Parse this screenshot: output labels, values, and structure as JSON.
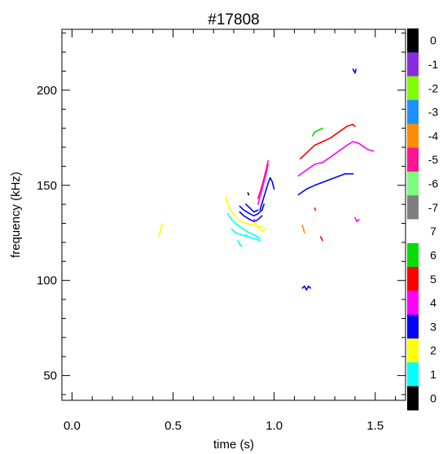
{
  "chart_data": {
    "type": "scatter",
    "title": "#17808",
    "xlabel": "time (s)",
    "ylabel": "frequency (kHz)",
    "xlim": [
      -0.05,
      1.65
    ],
    "ylim": [
      37,
      232
    ],
    "xticks": [
      0.0,
      0.5,
      1.0,
      1.5
    ],
    "xtick_labels": [
      "0.0",
      "0.5",
      "1.0",
      "1.5"
    ],
    "yticks": [
      50,
      100,
      150,
      200
    ],
    "ytick_labels": [
      "50",
      "100",
      "150",
      "200"
    ],
    "x_minor_step": 0.1,
    "y_minor_step": 10,
    "grid": false,
    "legend": "colorbar right",
    "colorbar": [
      {
        "label": "0",
        "color": "#000000"
      },
      {
        "label": "-1",
        "color": "#8a2be2"
      },
      {
        "label": "-2",
        "color": "#7fff00"
      },
      {
        "label": "-3",
        "color": "#1e90ff"
      },
      {
        "label": "-4",
        "color": "#ff8c00"
      },
      {
        "label": "-5",
        "color": "#ff1493"
      },
      {
        "label": "-6",
        "color": "#7cfc7c"
      },
      {
        "label": "-7",
        "color": "#808080"
      },
      {
        "label": "7",
        "color": "#ffffff"
      },
      {
        "label": "6",
        "color": "#00dd00"
      },
      {
        "label": "5",
        "color": "#ff0000"
      },
      {
        "label": "4",
        "color": "#ff00ff"
      },
      {
        "label": "3",
        "color": "#0000ff"
      },
      {
        "label": "2",
        "color": "#ffff00"
      },
      {
        "label": "1",
        "color": "#00ffff"
      },
      {
        "label": "0",
        "color": "#000000"
      }
    ],
    "series": [
      {
        "mode": 2,
        "color": "#ffff00",
        "points": [
          [
            0.43,
            123
          ],
          [
            0.435,
            125
          ],
          [
            0.44,
            127
          ],
          [
            0.445,
            129
          ],
          [
            0.45,
            130
          ]
        ]
      },
      {
        "mode": 2,
        "color": "#ffff00",
        "points": [
          [
            0.76,
            144
          ],
          [
            0.77,
            140
          ],
          [
            0.79,
            136
          ],
          [
            0.82,
            132
          ],
          [
            0.86,
            130
          ],
          [
            0.9,
            129
          ],
          [
            0.94,
            128
          ]
        ]
      },
      {
        "mode": 2,
        "color": "#ffff00",
        "points": [
          [
            0.9,
            131
          ],
          [
            0.92,
            128
          ],
          [
            0.94,
            126
          ],
          [
            0.96,
            127
          ]
        ]
      },
      {
        "mode": 1,
        "color": "#00ffff",
        "points": [
          [
            0.77,
            135
          ],
          [
            0.79,
            132
          ],
          [
            0.82,
            129
          ],
          [
            0.86,
            126
          ],
          [
            0.9,
            124
          ],
          [
            0.93,
            122
          ]
        ]
      },
      {
        "mode": 1,
        "color": "#00ffff",
        "points": [
          [
            0.79,
            127
          ],
          [
            0.81,
            125
          ],
          [
            0.84,
            124
          ],
          [
            0.87,
            123
          ],
          [
            0.9,
            122
          ],
          [
            0.93,
            121
          ]
        ]
      },
      {
        "mode": 1,
        "color": "#00ffff",
        "points": [
          [
            0.82,
            121
          ],
          [
            0.83,
            119
          ],
          [
            0.84,
            118
          ]
        ]
      },
      {
        "mode": 1,
        "color": "#00ffff",
        "points": [
          [
            0.86,
            124
          ],
          [
            0.87,
            123
          ]
        ]
      },
      {
        "mode": 3,
        "color": "#0000ff",
        "points": [
          [
            0.83,
            139
          ],
          [
            0.85,
            137
          ],
          [
            0.88,
            135
          ],
          [
            0.9,
            134
          ],
          [
            0.92,
            135
          ],
          [
            0.94,
            137
          ],
          [
            0.95,
            140
          ]
        ]
      },
      {
        "mode": 3,
        "color": "#0000ff",
        "points": [
          [
            0.83,
            136
          ],
          [
            0.85,
            134
          ],
          [
            0.88,
            132
          ],
          [
            0.9,
            131
          ],
          [
            0.92,
            132
          ],
          [
            0.94,
            134
          ]
        ]
      },
      {
        "mode": 3,
        "color": "#0000ff",
        "points": [
          [
            0.86,
            140
          ],
          [
            0.88,
            138
          ],
          [
            0.9,
            136
          ],
          [
            0.92,
            137
          ]
        ]
      },
      {
        "mode": 3,
        "color": "#0000ff",
        "points": [
          [
            0.93,
            137
          ],
          [
            0.95,
            144
          ],
          [
            0.97,
            151
          ],
          [
            0.98,
            154
          ],
          [
            0.99,
            152
          ],
          [
            1.0,
            148
          ]
        ]
      },
      {
        "mode": 3,
        "color": "#0000ff",
        "points": [
          [
            1.12,
            145
          ],
          [
            1.16,
            148
          ],
          [
            1.2,
            150
          ],
          [
            1.25,
            152
          ],
          [
            1.3,
            154
          ],
          [
            1.35,
            156
          ],
          [
            1.39,
            156
          ]
        ]
      },
      {
        "mode": 3,
        "color": "#0000ff",
        "points": [
          [
            1.39,
            211
          ],
          [
            1.4,
            209
          ],
          [
            1.405,
            211
          ]
        ]
      },
      {
        "mode": 3,
        "color": "#0000ff",
        "points": [
          [
            1.14,
            96
          ],
          [
            1.15,
            97
          ],
          [
            1.16,
            95
          ],
          [
            1.17,
            97
          ],
          [
            1.18,
            96
          ]
        ]
      },
      {
        "mode": 4,
        "color": "#ff00ff",
        "points": [
          [
            0.9,
            132
          ],
          [
            0.91,
            131
          ]
        ]
      },
      {
        "mode": 4,
        "color": "#ff00ff",
        "points": [
          [
            0.92,
            140
          ],
          [
            0.94,
            148
          ],
          [
            0.96,
            156
          ],
          [
            0.97,
            161
          ]
        ]
      },
      {
        "mode": 4,
        "color": "#ff00ff",
        "points": [
          [
            1.12,
            155
          ],
          [
            1.16,
            158
          ],
          [
            1.2,
            161
          ],
          [
            1.24,
            162
          ],
          [
            1.28,
            165
          ],
          [
            1.32,
            168
          ],
          [
            1.36,
            171
          ],
          [
            1.39,
            173
          ],
          [
            1.42,
            172
          ],
          [
            1.46,
            169
          ],
          [
            1.49,
            168
          ]
        ]
      },
      {
        "mode": 4,
        "color": "#ff00ff",
        "points": [
          [
            1.4,
            133
          ],
          [
            1.41,
            131
          ],
          [
            1.42,
            132
          ]
        ]
      },
      {
        "mode": 5,
        "color": "#ff0000",
        "points": [
          [
            1.13,
            164
          ],
          [
            1.16,
            167
          ],
          [
            1.2,
            171
          ],
          [
            1.24,
            173
          ],
          [
            1.28,
            175
          ],
          [
            1.32,
            178
          ],
          [
            1.36,
            181
          ],
          [
            1.39,
            182
          ],
          [
            1.4,
            181
          ]
        ]
      },
      {
        "mode": 5,
        "color": "#ff0000",
        "points": [
          [
            1.2,
            138
          ],
          [
            1.205,
            137
          ]
        ]
      },
      {
        "mode": 5,
        "color": "#ff0000",
        "points": [
          [
            1.23,
            123
          ],
          [
            1.24,
            121
          ]
        ]
      },
      {
        "mode": -5,
        "color": "#ff1493",
        "points": [
          [
            0.92,
            143
          ],
          [
            0.94,
            150
          ],
          [
            0.96,
            158
          ],
          [
            0.97,
            163
          ]
        ]
      },
      {
        "mode": -4,
        "color": "#ff8c00",
        "points": [
          [
            1.14,
            129
          ],
          [
            1.145,
            127
          ],
          [
            1.15,
            125
          ]
        ]
      },
      {
        "mode": 6,
        "color": "#00dd00",
        "points": [
          [
            1.19,
            176
          ],
          [
            1.2,
            178
          ],
          [
            1.22,
            179
          ],
          [
            1.24,
            180
          ]
        ]
      },
      {
        "mode": 0,
        "color": "#000000",
        "points": [
          [
            0.87,
            146
          ],
          [
            0.875,
            145
          ]
        ]
      }
    ]
  }
}
